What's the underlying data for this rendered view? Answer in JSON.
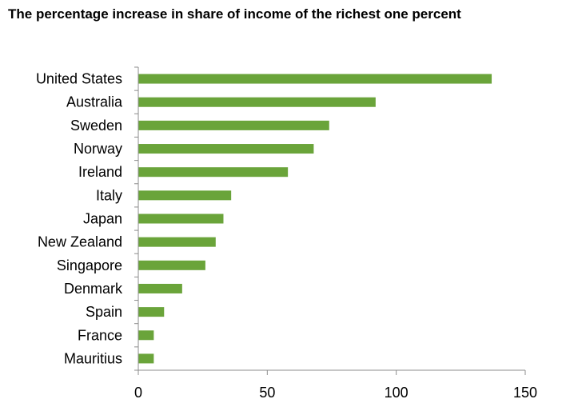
{
  "chart_data": {
    "type": "bar",
    "orientation": "horizontal",
    "title": "The percentage increase in share of income of the richest one percent",
    "xlabel": "",
    "ylabel": "",
    "categories": [
      "United States",
      "Australia",
      "Sweden",
      "Norway",
      "Ireland",
      "Italy",
      "Japan",
      "New Zealand",
      "Singapore",
      "Denmark",
      "Spain",
      "France",
      "Mauritius"
    ],
    "values": [
      137,
      92,
      74,
      68,
      58,
      36,
      33,
      30,
      26,
      17,
      10,
      6,
      6
    ],
    "xlim": [
      0,
      150
    ],
    "xticks": [
      0,
      50,
      100,
      150
    ],
    "grid": false,
    "legend": "none",
    "bar_color": "#6aa43a",
    "axis_color": "#8c8c8c"
  }
}
